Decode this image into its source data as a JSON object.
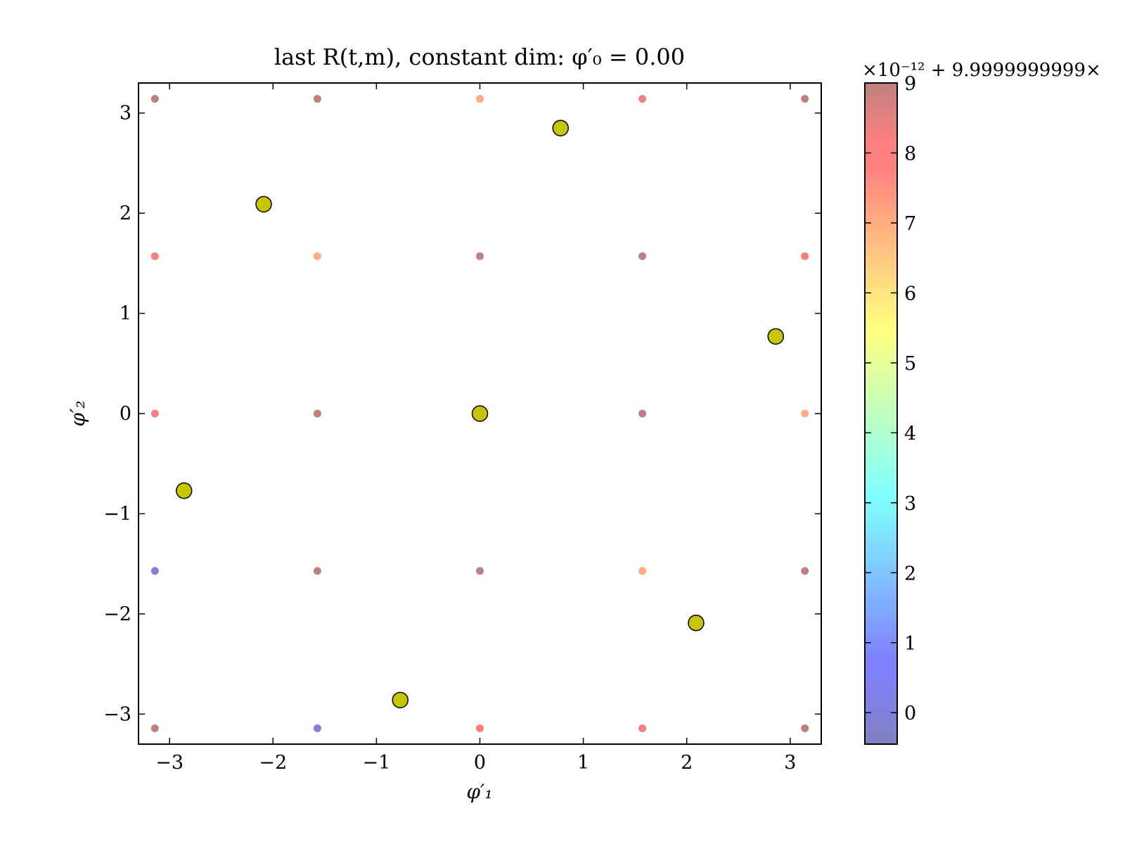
{
  "chart_data": {
    "type": "scatter",
    "title": "last R(t,m), constant dim: φ′₀ = 0.00",
    "xlabel": "φ′₁",
    "ylabel": "φ′₂",
    "xlim": [
      -3.3,
      3.3
    ],
    "ylim": [
      -3.3,
      3.3
    ],
    "xticks": [
      -3,
      -2,
      -1,
      0,
      1,
      2,
      3
    ],
    "yticks": [
      -3,
      -2,
      -1,
      0,
      1,
      2,
      3
    ],
    "xtick_labels": [
      "−3",
      "−2",
      "−1",
      "0",
      "1",
      "2",
      "3"
    ],
    "ytick_labels": [
      "−3",
      "−2",
      "−1",
      "0",
      "1",
      "2",
      "3"
    ],
    "grid": false,
    "legend": "none",
    "colorbar": {
      "label_offset": "×10⁻¹² + 9.9999999999×",
      "range": [
        -0.45,
        9
      ],
      "ticks": [
        0,
        1,
        2,
        3,
        4,
        5,
        6,
        7,
        8,
        9
      ],
      "tick_labels": [
        "0",
        "1",
        "2",
        "3",
        "4",
        "5",
        "6",
        "7",
        "8",
        "9"
      ],
      "colormap": "jet",
      "alpha": 0.5
    },
    "grid_points": [
      {
        "x": -3.1416,
        "y": 3.1416,
        "c": 9.0
      },
      {
        "x": -1.5708,
        "y": 3.1416,
        "c": 9.0
      },
      {
        "x": 0.0,
        "y": 3.1416,
        "c": 7.0
      },
      {
        "x": 1.5708,
        "y": 3.1416,
        "c": 8.0
      },
      {
        "x": 3.1416,
        "y": 3.1416,
        "c": 9.0
      },
      {
        "x": -3.1416,
        "y": 1.5708,
        "c": 8.0
      },
      {
        "x": -1.5708,
        "y": 1.5708,
        "c": 7.0
      },
      {
        "x": 0.0,
        "y": 1.5708,
        "c": 9.0
      },
      {
        "x": 1.5708,
        "y": 1.5708,
        "c": 9.0
      },
      {
        "x": 3.1416,
        "y": 1.5708,
        "c": 8.0
      },
      {
        "x": -3.1416,
        "y": 0.0,
        "c": 8.0
      },
      {
        "x": -1.5708,
        "y": 0.0,
        "c": 9.0
      },
      {
        "x": 1.5708,
        "y": 0.0,
        "c": 9.0
      },
      {
        "x": 3.1416,
        "y": 0.0,
        "c": 7.0
      },
      {
        "x": -3.1416,
        "y": -1.5708,
        "c": 0.0
      },
      {
        "x": -1.5708,
        "y": -1.5708,
        "c": 9.0
      },
      {
        "x": 0.0,
        "y": -1.5708,
        "c": 9.0
      },
      {
        "x": 1.5708,
        "y": -1.5708,
        "c": 7.0
      },
      {
        "x": 3.1416,
        "y": -1.5708,
        "c": 9.0
      },
      {
        "x": -3.1416,
        "y": -3.1416,
        "c": 9.0
      },
      {
        "x": -1.5708,
        "y": -3.1416,
        "c": 0.0
      },
      {
        "x": 0.0,
        "y": -3.1416,
        "c": 8.0
      },
      {
        "x": 1.5708,
        "y": -3.1416,
        "c": 8.0
      },
      {
        "x": 3.1416,
        "y": -3.1416,
        "c": 9.0
      }
    ],
    "highlight_color": "#c7c400",
    "highlight_points": [
      {
        "x": 0.78,
        "y": 2.85
      },
      {
        "x": -2.09,
        "y": 2.09
      },
      {
        "x": 2.86,
        "y": 0.77
      },
      {
        "x": 0.0,
        "y": 0.0
      },
      {
        "x": -2.86,
        "y": -0.77
      },
      {
        "x": 2.09,
        "y": -2.09
      },
      {
        "x": -0.77,
        "y": -2.86
      }
    ]
  }
}
